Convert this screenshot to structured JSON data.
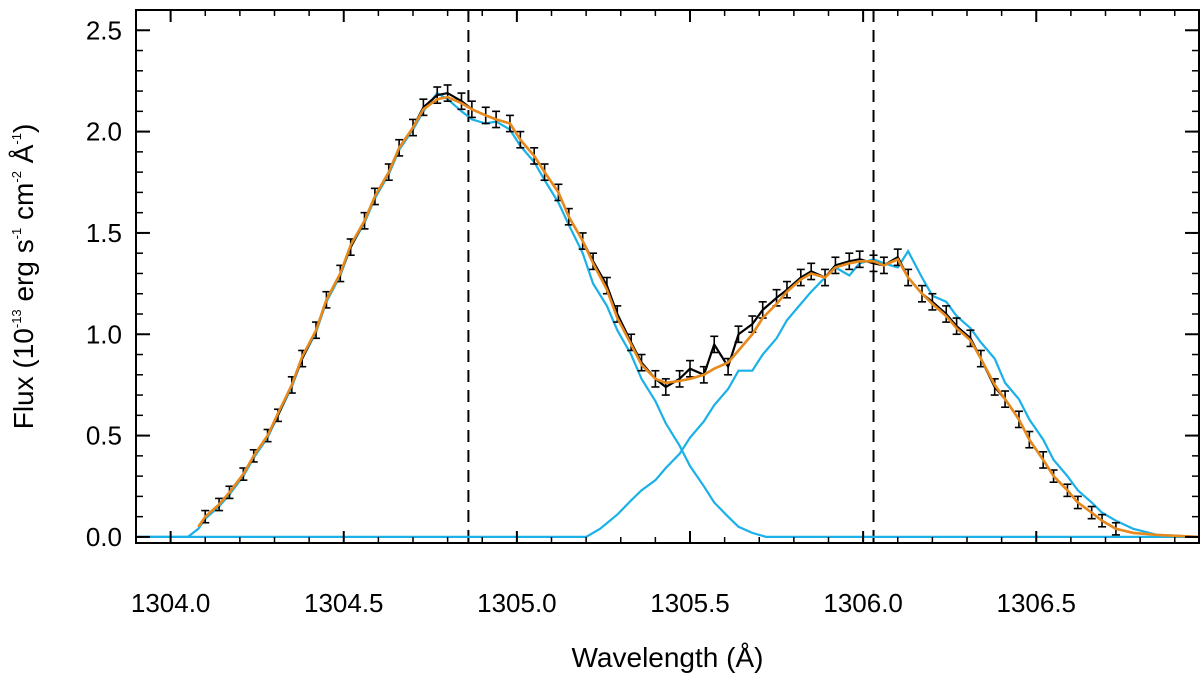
{
  "chart_data": {
    "type": "line",
    "xlabel": "Wavelength (Å)",
    "ylabel": {
      "prefix": "Flux (10",
      "exp1": "-13",
      "part2": " erg s",
      "exp2": "-1",
      "part3": " cm",
      "exp3": "-2",
      "part4": " Å",
      "exp4": "-1",
      "suffix": ")"
    },
    "xlim": [
      1303.9,
      1306.97
    ],
    "ylim": [
      -0.03,
      2.6
    ],
    "x_ticks": [
      1304.0,
      1304.5,
      1305.0,
      1305.5,
      1306.0,
      1306.5
    ],
    "x_tick_labels": [
      "1304.0",
      "1304.5",
      "1305.0",
      "1305.5",
      "1306.0",
      "1306.5"
    ],
    "y_ticks": [
      0.0,
      0.5,
      1.0,
      1.5,
      2.0,
      2.5
    ],
    "y_tick_labels": [
      "0.0",
      "0.5",
      "1.0",
      "1.5",
      "2.0",
      "2.5"
    ],
    "vertical_lines": [
      1304.86,
      1306.03
    ],
    "colors": {
      "data": "#000000",
      "fit": "#e8891c",
      "components": "#1ab0e8",
      "vline": "#000000"
    },
    "series": [
      {
        "key": "data",
        "style": "black line with error bars",
        "x": [
          1304.1,
          1304.14,
          1304.17,
          1304.21,
          1304.24,
          1304.28,
          1304.31,
          1304.35,
          1304.38,
          1304.42,
          1304.45,
          1304.49,
          1304.52,
          1304.56,
          1304.59,
          1304.63,
          1304.66,
          1304.7,
          1304.73,
          1304.77,
          1304.8,
          1304.84,
          1304.87,
          1304.91,
          1304.94,
          1304.98,
          1305.01,
          1305.05,
          1305.08,
          1305.12,
          1305.15,
          1305.19,
          1305.22,
          1305.26,
          1305.29,
          1305.33,
          1305.36,
          1305.4,
          1305.43,
          1305.47,
          1305.5,
          1305.54,
          1305.57,
          1305.61,
          1305.64,
          1305.68,
          1305.71,
          1305.75,
          1305.78,
          1305.82,
          1305.85,
          1305.89,
          1305.92,
          1305.96,
          1305.99,
          1306.03,
          1306.06,
          1306.1,
          1306.13,
          1306.17,
          1306.2,
          1306.24,
          1306.27,
          1306.31,
          1306.34,
          1306.38,
          1306.41,
          1306.45,
          1306.48,
          1306.52,
          1306.55,
          1306.59,
          1306.62,
          1306.66,
          1306.69,
          1306.73
        ],
        "y": [
          0.1,
          0.16,
          0.22,
          0.31,
          0.4,
          0.5,
          0.6,
          0.75,
          0.88,
          1.02,
          1.17,
          1.3,
          1.43,
          1.56,
          1.68,
          1.8,
          1.92,
          2.02,
          2.12,
          2.18,
          2.19,
          2.15,
          2.11,
          2.08,
          2.06,
          2.04,
          1.96,
          1.88,
          1.8,
          1.7,
          1.58,
          1.46,
          1.36,
          1.24,
          1.1,
          0.96,
          0.86,
          0.78,
          0.74,
          0.78,
          0.83,
          0.8,
          0.95,
          0.84,
          1.0,
          1.05,
          1.12,
          1.18,
          1.22,
          1.28,
          1.31,
          1.28,
          1.34,
          1.36,
          1.37,
          1.35,
          1.34,
          1.38,
          1.28,
          1.2,
          1.16,
          1.1,
          1.04,
          0.98,
          0.88,
          0.74,
          0.68,
          0.58,
          0.48,
          0.38,
          0.3,
          0.23,
          0.17,
          0.12,
          0.08,
          0.04
        ],
        "err": [
          0.03,
          0.03,
          0.03,
          0.03,
          0.03,
          0.03,
          0.03,
          0.04,
          0.04,
          0.04,
          0.04,
          0.04,
          0.04,
          0.04,
          0.04,
          0.04,
          0.04,
          0.04,
          0.04,
          0.04,
          0.04,
          0.04,
          0.04,
          0.04,
          0.04,
          0.04,
          0.04,
          0.04,
          0.04,
          0.04,
          0.04,
          0.04,
          0.04,
          0.04,
          0.04,
          0.04,
          0.04,
          0.04,
          0.04,
          0.04,
          0.04,
          0.04,
          0.04,
          0.04,
          0.04,
          0.04,
          0.04,
          0.04,
          0.04,
          0.04,
          0.04,
          0.04,
          0.04,
          0.04,
          0.04,
          0.04,
          0.04,
          0.04,
          0.04,
          0.04,
          0.04,
          0.04,
          0.04,
          0.04,
          0.04,
          0.04,
          0.04,
          0.04,
          0.04,
          0.04,
          0.03,
          0.03,
          0.03,
          0.03,
          0.03,
          0.03
        ]
      },
      {
        "key": "fit",
        "style": "orange line",
        "x": [
          1304.08,
          1304.1,
          1304.14,
          1304.17,
          1304.21,
          1304.24,
          1304.28,
          1304.31,
          1304.35,
          1304.38,
          1304.42,
          1304.45,
          1304.49,
          1304.52,
          1304.56,
          1304.59,
          1304.63,
          1304.66,
          1304.7,
          1304.73,
          1304.77,
          1304.8,
          1304.84,
          1304.87,
          1304.91,
          1304.94,
          1304.98,
          1305.01,
          1305.05,
          1305.08,
          1305.12,
          1305.15,
          1305.19,
          1305.22,
          1305.26,
          1305.29,
          1305.33,
          1305.36,
          1305.4,
          1305.43,
          1305.47,
          1305.5,
          1305.54,
          1305.57,
          1305.61,
          1305.64,
          1305.68,
          1305.71,
          1305.75,
          1305.78,
          1305.82,
          1305.85,
          1305.89,
          1305.92,
          1305.96,
          1305.99,
          1306.03,
          1306.06,
          1306.1,
          1306.13,
          1306.17,
          1306.2,
          1306.24,
          1306.27,
          1306.31,
          1306.34,
          1306.38,
          1306.41,
          1306.45,
          1306.48,
          1306.52,
          1306.55,
          1306.59,
          1306.62,
          1306.66,
          1306.69,
          1306.73,
          1306.78,
          1306.85,
          1306.97
        ],
        "y": [
          0.05,
          0.1,
          0.16,
          0.22,
          0.31,
          0.4,
          0.5,
          0.61,
          0.75,
          0.89,
          1.02,
          1.17,
          1.3,
          1.44,
          1.56,
          1.68,
          1.8,
          1.92,
          2.02,
          2.11,
          2.16,
          2.17,
          2.14,
          2.11,
          2.08,
          2.06,
          2.04,
          1.96,
          1.88,
          1.8,
          1.7,
          1.58,
          1.46,
          1.35,
          1.22,
          1.08,
          0.95,
          0.85,
          0.78,
          0.76,
          0.77,
          0.78,
          0.8,
          0.83,
          0.86,
          0.92,
          1.0,
          1.08,
          1.15,
          1.21,
          1.27,
          1.3,
          1.28,
          1.33,
          1.35,
          1.36,
          1.36,
          1.34,
          1.37,
          1.28,
          1.2,
          1.15,
          1.09,
          1.03,
          0.97,
          0.88,
          0.75,
          0.68,
          0.58,
          0.48,
          0.38,
          0.3,
          0.23,
          0.17,
          0.12,
          0.08,
          0.04,
          0.02,
          0.01,
          0.0
        ]
      },
      {
        "key": "component1",
        "style": "cyan line",
        "x": [
          1303.9,
          1304.05,
          1304.08,
          1304.1,
          1304.14,
          1304.17,
          1304.21,
          1304.24,
          1304.28,
          1304.31,
          1304.35,
          1304.38,
          1304.42,
          1304.45,
          1304.49,
          1304.52,
          1304.56,
          1304.59,
          1304.63,
          1304.66,
          1304.7,
          1304.73,
          1304.77,
          1304.8,
          1304.84,
          1304.87,
          1304.91,
          1304.94,
          1304.98,
          1305.01,
          1305.05,
          1305.08,
          1305.12,
          1305.15,
          1305.19,
          1305.22,
          1305.26,
          1305.29,
          1305.33,
          1305.36,
          1305.4,
          1305.43,
          1305.47,
          1305.5,
          1305.54,
          1305.57,
          1305.61,
          1305.64,
          1305.68,
          1305.72,
          1305.8,
          1306.97
        ],
        "y": [
          0.0,
          0.0,
          0.04,
          0.09,
          0.15,
          0.21,
          0.3,
          0.39,
          0.49,
          0.6,
          0.74,
          0.88,
          1.01,
          1.16,
          1.29,
          1.43,
          1.55,
          1.67,
          1.79,
          1.91,
          2.01,
          2.1,
          2.19,
          2.16,
          2.1,
          2.06,
          2.04,
          2.05,
          2.01,
          1.93,
          1.85,
          1.76,
          1.65,
          1.54,
          1.4,
          1.25,
          1.14,
          1.02,
          0.9,
          0.78,
          0.67,
          0.56,
          0.45,
          0.35,
          0.25,
          0.17,
          0.1,
          0.05,
          0.02,
          0.0,
          0.0,
          0.0
        ]
      },
      {
        "key": "component2",
        "style": "cyan line",
        "x": [
          1303.9,
          1305.2,
          1305.24,
          1305.29,
          1305.33,
          1305.36,
          1305.4,
          1305.43,
          1305.47,
          1305.5,
          1305.54,
          1305.57,
          1305.61,
          1305.64,
          1305.68,
          1305.71,
          1305.75,
          1305.78,
          1305.82,
          1305.85,
          1305.89,
          1305.92,
          1305.96,
          1305.99,
          1306.03,
          1306.06,
          1306.1,
          1306.13,
          1306.17,
          1306.2,
          1306.24,
          1306.27,
          1306.31,
          1306.34,
          1306.38,
          1306.41,
          1306.45,
          1306.48,
          1306.52,
          1306.55,
          1306.59,
          1306.62,
          1306.66,
          1306.69,
          1306.73,
          1306.78,
          1306.85,
          1306.97
        ],
        "y": [
          0.0,
          0.0,
          0.04,
          0.11,
          0.18,
          0.23,
          0.28,
          0.34,
          0.41,
          0.49,
          0.57,
          0.65,
          0.73,
          0.82,
          0.82,
          0.9,
          0.98,
          1.07,
          1.15,
          1.21,
          1.28,
          1.33,
          1.29,
          1.35,
          1.37,
          1.35,
          1.33,
          1.41,
          1.28,
          1.19,
          1.16,
          1.09,
          1.03,
          0.96,
          0.88,
          0.76,
          0.68,
          0.58,
          0.48,
          0.38,
          0.3,
          0.23,
          0.17,
          0.12,
          0.08,
          0.04,
          0.01,
          0.0
        ]
      }
    ]
  }
}
